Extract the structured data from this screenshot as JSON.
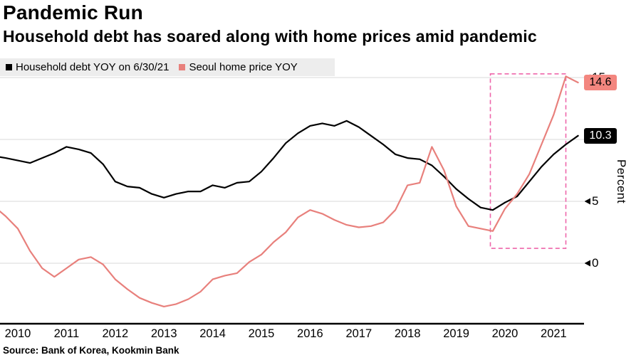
{
  "header": {
    "title": "Pandemic Run",
    "subtitle": "Household debt has soared along with home prices amid pandemic"
  },
  "legend": {
    "items": [
      {
        "label": "Household debt YOY on 6/30/21",
        "color": "#000000"
      },
      {
        "label": "Seoul home price YOY",
        "color": "#e8807c"
      }
    ]
  },
  "y_axis": {
    "title": "Percent"
  },
  "end_labels": [
    {
      "text": "14.6",
      "value": 14.6,
      "bg": "#f3867f",
      "fg": "#000000"
    },
    {
      "text": "10.3",
      "value": 10.3,
      "bg": "#000000",
      "fg": "#ffffff"
    }
  ],
  "source": "Source: Bank of Korea, Kookmin Bank",
  "chart_data": {
    "type": "line",
    "title": "Pandemic Run",
    "subtitle": "Household debt has soared along with home prices amid pandemic",
    "ylabel": "Percent",
    "ylim": [
      -4.9,
      15.5
    ],
    "xlim": [
      2009.6,
      2021.6
    ],
    "y_ticks": [
      0,
      5,
      10,
      15
    ],
    "x_ticks": [
      2010,
      2011,
      2012,
      2013,
      2014,
      2015,
      2016,
      2017,
      2018,
      2019,
      2020,
      2021
    ],
    "grid": "horizontal",
    "legend_position": "top-left",
    "x": [
      2009.6,
      2009.75,
      2010.0,
      2010.25,
      2010.5,
      2010.75,
      2011.0,
      2011.25,
      2011.5,
      2011.75,
      2012.0,
      2012.25,
      2012.5,
      2012.75,
      2013.0,
      2013.25,
      2013.5,
      2013.75,
      2014.0,
      2014.25,
      2014.5,
      2014.75,
      2015.0,
      2015.25,
      2015.5,
      2015.75,
      2016.0,
      2016.25,
      2016.5,
      2016.75,
      2017.0,
      2017.25,
      2017.5,
      2017.75,
      2018.0,
      2018.25,
      2018.5,
      2018.75,
      2019.0,
      2019.25,
      2019.5,
      2019.75,
      2020.0,
      2020.25,
      2020.5,
      2020.75,
      2021.0,
      2021.25,
      2021.5
    ],
    "series": [
      {
        "name": "Household debt YOY on 6/30/21",
        "color": "#000000",
        "end_value": 10.3,
        "values": [
          8.6,
          8.5,
          8.3,
          8.1,
          8.5,
          8.9,
          9.4,
          9.2,
          8.9,
          8.0,
          6.6,
          6.2,
          6.1,
          5.6,
          5.3,
          5.6,
          5.8,
          5.8,
          6.3,
          6.1,
          6.5,
          6.6,
          7.4,
          8.5,
          9.7,
          10.5,
          11.1,
          11.3,
          11.1,
          11.5,
          11.0,
          10.3,
          9.6,
          8.8,
          8.5,
          8.4,
          7.9,
          7.0,
          6.0,
          5.2,
          4.5,
          4.3,
          4.9,
          5.4,
          6.6,
          7.8,
          8.8,
          9.6,
          10.3
        ]
      },
      {
        "name": "Seoul home price YOY",
        "color": "#e8807c",
        "end_value": 14.6,
        "values": [
          4.3,
          3.8,
          2.8,
          1.0,
          -0.4,
          -1.1,
          -0.4,
          0.3,
          0.5,
          -0.1,
          -1.3,
          -2.1,
          -2.8,
          -3.2,
          -3.5,
          -3.3,
          -2.9,
          -2.3,
          -1.3,
          -1.0,
          -0.8,
          0.1,
          0.7,
          1.7,
          2.5,
          3.7,
          4.3,
          4.0,
          3.5,
          3.1,
          2.9,
          3.0,
          3.3,
          4.3,
          6.3,
          6.5,
          9.4,
          7.5,
          4.6,
          3.0,
          2.8,
          2.6,
          4.4,
          5.6,
          7.2,
          9.6,
          12.0,
          15.1,
          14.6
        ]
      }
    ],
    "annotations": {
      "highlight_box": {
        "x": [
          2019.7,
          2021.25
        ],
        "y": [
          1.2,
          15.3
        ],
        "style": "dashed",
        "color": "#ee66aa"
      }
    }
  }
}
